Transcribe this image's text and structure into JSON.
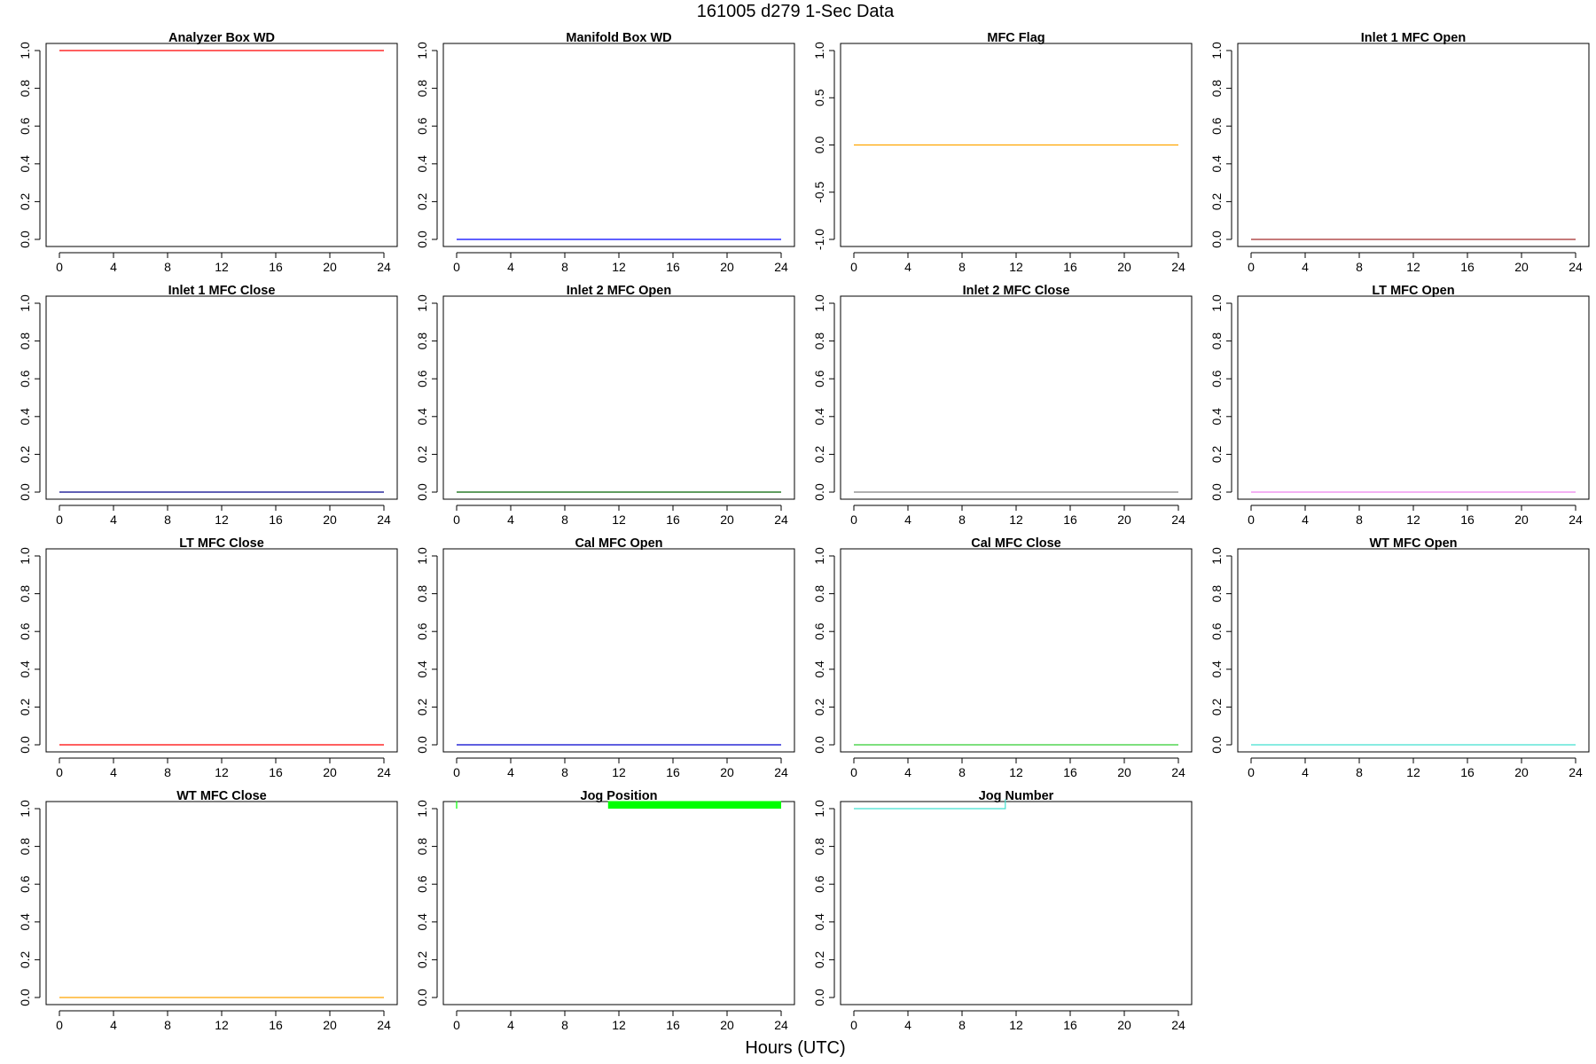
{
  "page": {
    "title": "161005   d279   1-Sec Data",
    "x_label": "Hours (UTC)"
  },
  "chart_data": [
    {
      "type": "line",
      "title": "Analyzer Box WD",
      "color": "#ff0000",
      "xlim": [
        0,
        24
      ],
      "xticks": [
        0,
        4,
        8,
        12,
        16,
        20,
        24
      ],
      "ylim": [
        0,
        1
      ],
      "yticks": [
        0.0,
        0.2,
        0.4,
        0.6,
        0.8,
        1.0
      ],
      "ytick_labels": [
        "0.0",
        "0.2",
        "0.4",
        "0.6",
        "0.8",
        "1.0"
      ],
      "segments": [
        {
          "x": [
            0,
            24
          ],
          "y": [
            1,
            1
          ]
        }
      ]
    },
    {
      "type": "line",
      "title": "Manifold Box WD",
      "color": "#0000ff",
      "xlim": [
        0,
        24
      ],
      "xticks": [
        0,
        4,
        8,
        12,
        16,
        20,
        24
      ],
      "ylim": [
        0,
        1
      ],
      "yticks": [
        0.0,
        0.2,
        0.4,
        0.6,
        0.8,
        1.0
      ],
      "ytick_labels": [
        "0.0",
        "0.2",
        "0.4",
        "0.6",
        "0.8",
        "1.0"
      ],
      "segments": [
        {
          "x": [
            0,
            24
          ],
          "y": [
            0,
            0
          ]
        }
      ]
    },
    {
      "type": "line",
      "title": "MFC Flag",
      "color": "#ffa500",
      "xlim": [
        0,
        24
      ],
      "xticks": [
        0,
        4,
        8,
        12,
        16,
        20,
        24
      ],
      "ylim": [
        -1,
        1
      ],
      "yticks": [
        -1.0,
        -0.5,
        0.0,
        0.5,
        1.0
      ],
      "ytick_labels": [
        "-1.0",
        "-0.5",
        "0.0",
        "0.5",
        "1.0"
      ],
      "segments": [
        {
          "x": [
            0,
            24
          ],
          "y": [
            0,
            0
          ]
        }
      ]
    },
    {
      "type": "line",
      "title": "Inlet 1 MFC Open",
      "color": "#a52a2a",
      "xlim": [
        0,
        24
      ],
      "xticks": [
        0,
        4,
        8,
        12,
        16,
        20,
        24
      ],
      "ylim": [
        0,
        1
      ],
      "yticks": [
        0.0,
        0.2,
        0.4,
        0.6,
        0.8,
        1.0
      ],
      "ytick_labels": [
        "0.0",
        "0.2",
        "0.4",
        "0.6",
        "0.8",
        "1.0"
      ],
      "segments": [
        {
          "x": [
            0,
            24
          ],
          "y": [
            0,
            0
          ]
        }
      ]
    },
    {
      "type": "line",
      "title": "Inlet 1 MFC Close",
      "color": "#00008b",
      "xlim": [
        0,
        24
      ],
      "xticks": [
        0,
        4,
        8,
        12,
        16,
        20,
        24
      ],
      "ylim": [
        0,
        1
      ],
      "yticks": [
        0.0,
        0.2,
        0.4,
        0.6,
        0.8,
        1.0
      ],
      "ytick_labels": [
        "0.0",
        "0.2",
        "0.4",
        "0.6",
        "0.8",
        "1.0"
      ],
      "segments": [
        {
          "x": [
            0,
            24
          ],
          "y": [
            0,
            0
          ]
        }
      ]
    },
    {
      "type": "line",
      "title": "Inlet 2 MFC Open",
      "color": "#006400",
      "xlim": [
        0,
        24
      ],
      "xticks": [
        0,
        4,
        8,
        12,
        16,
        20,
        24
      ],
      "ylim": [
        0,
        1
      ],
      "yticks": [
        0.0,
        0.2,
        0.4,
        0.6,
        0.8,
        1.0
      ],
      "ytick_labels": [
        "0.0",
        "0.2",
        "0.4",
        "0.6",
        "0.8",
        "1.0"
      ],
      "segments": [
        {
          "x": [
            0,
            24
          ],
          "y": [
            0,
            0
          ]
        }
      ]
    },
    {
      "type": "line",
      "title": "Inlet 2 MFC Close",
      "color": "#808080",
      "xlim": [
        0,
        24
      ],
      "xticks": [
        0,
        4,
        8,
        12,
        16,
        20,
        24
      ],
      "ylim": [
        0,
        1
      ],
      "yticks": [
        0.0,
        0.2,
        0.4,
        0.6,
        0.8,
        1.0
      ],
      "ytick_labels": [
        "0.0",
        "0.2",
        "0.4",
        "0.6",
        "0.8",
        "1.0"
      ],
      "segments": [
        {
          "x": [
            0,
            24
          ],
          "y": [
            0,
            0
          ]
        }
      ]
    },
    {
      "type": "line",
      "title": "LT MFC Open",
      "color": "#ee82ee",
      "xlim": [
        0,
        24
      ],
      "xticks": [
        0,
        4,
        8,
        12,
        16,
        20,
        24
      ],
      "ylim": [
        0,
        1
      ],
      "yticks": [
        0.0,
        0.2,
        0.4,
        0.6,
        0.8,
        1.0
      ],
      "ytick_labels": [
        "0.0",
        "0.2",
        "0.4",
        "0.6",
        "0.8",
        "1.0"
      ],
      "segments": [
        {
          "x": [
            0,
            24
          ],
          "y": [
            0,
            0
          ]
        }
      ]
    },
    {
      "type": "line",
      "title": "LT MFC Close",
      "color": "#ff0000",
      "xlim": [
        0,
        24
      ],
      "xticks": [
        0,
        4,
        8,
        12,
        16,
        20,
        24
      ],
      "ylim": [
        0,
        1
      ],
      "yticks": [
        0.0,
        0.2,
        0.4,
        0.6,
        0.8,
        1.0
      ],
      "ytick_labels": [
        "0.0",
        "0.2",
        "0.4",
        "0.6",
        "0.8",
        "1.0"
      ],
      "segments": [
        {
          "x": [
            0,
            24
          ],
          "y": [
            0,
            0
          ]
        }
      ]
    },
    {
      "type": "line",
      "title": "Cal MFC Open",
      "color": "#0000cd",
      "xlim": [
        0,
        24
      ],
      "xticks": [
        0,
        4,
        8,
        12,
        16,
        20,
        24
      ],
      "ylim": [
        0,
        1
      ],
      "yticks": [
        0.0,
        0.2,
        0.4,
        0.6,
        0.8,
        1.0
      ],
      "ytick_labels": [
        "0.0",
        "0.2",
        "0.4",
        "0.6",
        "0.8",
        "1.0"
      ],
      "segments": [
        {
          "x": [
            0,
            24
          ],
          "y": [
            0,
            0
          ]
        }
      ]
    },
    {
      "type": "line",
      "title": "Cal MFC Close",
      "color": "#32cd32",
      "xlim": [
        0,
        24
      ],
      "xticks": [
        0,
        4,
        8,
        12,
        16,
        20,
        24
      ],
      "ylim": [
        0,
        1
      ],
      "yticks": [
        0.0,
        0.2,
        0.4,
        0.6,
        0.8,
        1.0
      ],
      "ytick_labels": [
        "0.0",
        "0.2",
        "0.4",
        "0.6",
        "0.8",
        "1.0"
      ],
      "segments": [
        {
          "x": [
            0,
            24
          ],
          "y": [
            0,
            0
          ]
        }
      ]
    },
    {
      "type": "line",
      "title": "WT MFC Open",
      "color": "#40e0d0",
      "xlim": [
        0,
        24
      ],
      "xticks": [
        0,
        4,
        8,
        12,
        16,
        20,
        24
      ],
      "ylim": [
        0,
        1
      ],
      "yticks": [
        0.0,
        0.2,
        0.4,
        0.6,
        0.8,
        1.0
      ],
      "ytick_labels": [
        "0.0",
        "0.2",
        "0.4",
        "0.6",
        "0.8",
        "1.0"
      ],
      "segments": [
        {
          "x": [
            0,
            24
          ],
          "y": [
            0,
            0
          ]
        }
      ]
    },
    {
      "type": "line",
      "title": "WT MFC Close",
      "color": "#ffa500",
      "xlim": [
        0,
        24
      ],
      "xticks": [
        0,
        4,
        8,
        12,
        16,
        20,
        24
      ],
      "ylim": [
        0,
        1
      ],
      "yticks": [
        0.0,
        0.2,
        0.4,
        0.6,
        0.8,
        1.0
      ],
      "ytick_labels": [
        "0.0",
        "0.2",
        "0.4",
        "0.6",
        "0.8",
        "1.0"
      ],
      "segments": [
        {
          "x": [
            0,
            24
          ],
          "y": [
            0,
            0
          ]
        }
      ]
    },
    {
      "type": "line",
      "title": "Jog Position",
      "color": "#00ff00",
      "xlim": [
        0,
        24
      ],
      "xticks": [
        0,
        4,
        8,
        12,
        16,
        20,
        24
      ],
      "ylim": [
        0,
        1
      ],
      "yticks": [
        0.0,
        0.2,
        0.4,
        0.6,
        0.8,
        1.0
      ],
      "ytick_labels": [
        "0.0",
        "0.2",
        "0.4",
        "0.6",
        "0.8",
        "1.0"
      ],
      "segments": [
        {
          "x": [
            0,
            0
          ],
          "y": [
            1.0,
            1.04
          ]
        }
      ],
      "bands": [
        {
          "x": [
            11.2,
            24
          ],
          "y": [
            1.0,
            1.04
          ]
        }
      ]
    },
    {
      "type": "line",
      "title": "Jog Number",
      "color": "#40e0d0",
      "xlim": [
        0,
        24
      ],
      "xticks": [
        0,
        4,
        8,
        12,
        16,
        20,
        24
      ],
      "ylim": [
        0,
        1
      ],
      "yticks": [
        0.0,
        0.2,
        0.4,
        0.6,
        0.8,
        1.0
      ],
      "ytick_labels": [
        "0.0",
        "0.2",
        "0.4",
        "0.6",
        "0.8",
        "1.0"
      ],
      "segments": [
        {
          "x": [
            0,
            11.2,
            11.2
          ],
          "y": [
            1.0,
            1.0,
            1.05
          ]
        }
      ]
    }
  ]
}
